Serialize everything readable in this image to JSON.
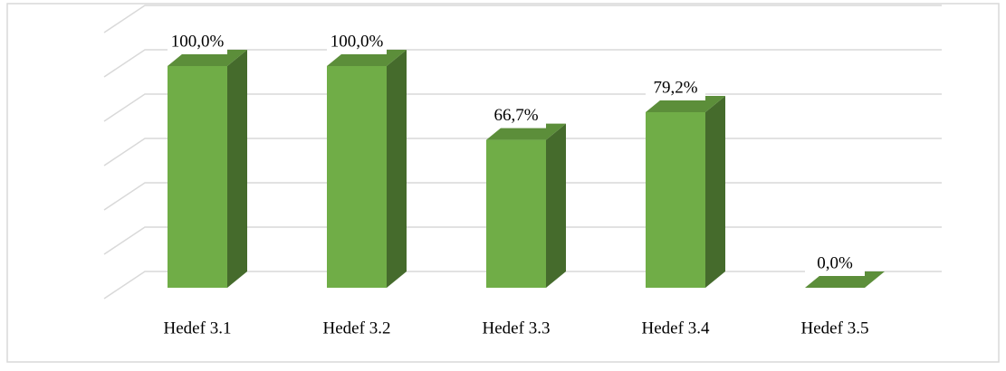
{
  "chart_data": {
    "type": "bar3d",
    "categories": [
      "Hedef 3.1",
      "Hedef 3.2",
      "Hedef 3.3",
      "Hedef 3.4",
      "Hedef 3.5"
    ],
    "values": [
      100,
      100,
      66.7,
      79.2,
      0
    ],
    "value_labels": [
      "100,0%",
      "100,0%",
      "66,7%",
      "79,2%",
      "0,0%"
    ],
    "color": "#70ad47",
    "ylim": [
      0,
      120
    ],
    "yticks": [
      0,
      20,
      40,
      60,
      80,
      100,
      120
    ],
    "grid": true
  }
}
